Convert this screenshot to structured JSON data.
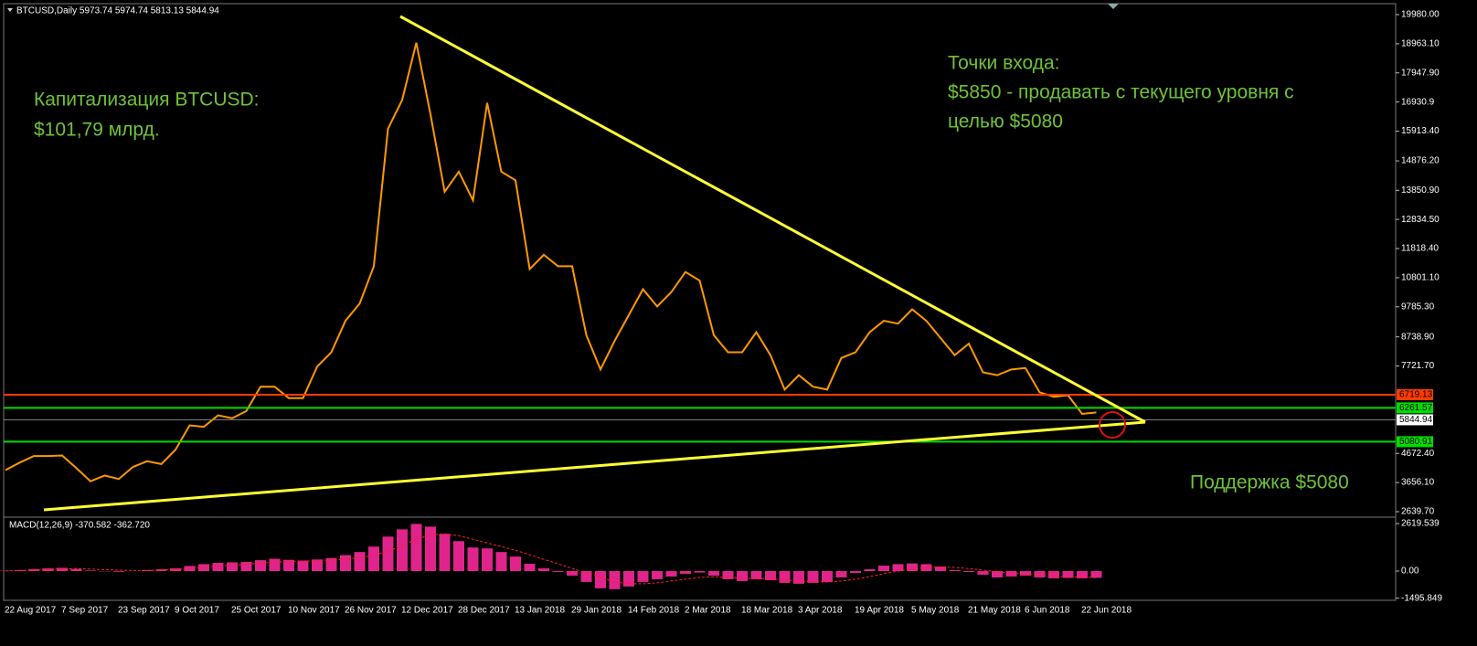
{
  "chart_data": [
    {
      "type": "line",
      "title": "BTCUSD,Daily  5973.74 5974.74 5813.13 5844.94",
      "color": "#ff9900",
      "categories": [
        "22 Aug 2017",
        null,
        null,
        null,
        "7 Sep 2017",
        null,
        null,
        null,
        "23 Sep 2017",
        null,
        null,
        null,
        "9 Oct 2017",
        null,
        null,
        null,
        "25 Oct 2017",
        null,
        null,
        null,
        "10 Nov 2017",
        null,
        null,
        null,
        "26 Nov 2017",
        null,
        null,
        null,
        "12 Dec 2017",
        null,
        null,
        null,
        "28 Dec 2017",
        null,
        null,
        null,
        "13 Jan 2018",
        null,
        null,
        null,
        "29 Jan 2018",
        null,
        null,
        null,
        "14 Feb 2018",
        null,
        null,
        null,
        "2 Mar 2018",
        null,
        null,
        null,
        "18 Mar 2018",
        null,
        null,
        null,
        "3 Apr 2018",
        null,
        null,
        null,
        "19 Apr 2018",
        null,
        null,
        null,
        "5 May 2018",
        null,
        null,
        null,
        "21 May 2018",
        null,
        null,
        null,
        "6 Jun 2018",
        null,
        null,
        null,
        "22 Jun 2018",
        null
      ],
      "values": [
        4090,
        4350,
        4580,
        4580,
        4600,
        4160,
        3700,
        3900,
        3780,
        4200,
        4400,
        4300,
        4800,
        5650,
        5600,
        6000,
        5900,
        6150,
        7000,
        7000,
        6600,
        6600,
        7700,
        8200,
        9300,
        9900,
        11200,
        16000,
        17000,
        19000,
        16500,
        13800,
        14500,
        13500,
        16900,
        14500,
        14200,
        11100,
        11600,
        11200,
        11200,
        8800,
        7600,
        8600,
        9500,
        10400,
        9800,
        10300,
        11000,
        10700,
        8800,
        8200,
        8200,
        8900,
        8100,
        6900,
        7400,
        7000,
        6900,
        8000,
        8200,
        8900,
        9300,
        9200,
        9700,
        9300,
        8700,
        8100,
        8500,
        7500,
        7400,
        7600,
        7650,
        6800,
        6650,
        6700,
        6050,
        6100
      ],
      "ylim": [
        2448,
        20362
      ],
      "yticks": [
        {
          "value": 19980,
          "label": "19980.00"
        },
        {
          "value": 18963.1,
          "label": "18963.10"
        },
        {
          "value": 17947.9,
          "label": "17947.90"
        },
        16930.9,
        {
          "value": 15913.4,
          "label": "15913.40"
        },
        {
          "value": 14876.2,
          "label": "14876.20"
        },
        {
          "value": 13850.9,
          "label": "13850.90"
        },
        {
          "value": 12834.5,
          "label": "12834.50"
        },
        {
          "value": 11818.4,
          "label": "11818.40"
        },
        {
          "value": 10801.1,
          "label": "10801.10"
        },
        {
          "value": 9785.3,
          "label": "9785.30"
        },
        {
          "value": 8738.9,
          "label": "8738.90"
        },
        {
          "value": 7721.7,
          "label": "7721.70"
        },
        {
          "value": 4672.4,
          "label": "4672.40"
        },
        {
          "value": 3656.1,
          "label": "3656.10"
        },
        {
          "value": 2639.7,
          "label": "2639.70"
        }
      ],
      "levels": [
        {
          "value": 6719.13,
          "color": "#ff3c00"
        },
        {
          "value": 6261.57,
          "color": "#00dd00"
        },
        {
          "value": 5844.94,
          "color": "#ffffff"
        },
        {
          "value": 5080.91,
          "color": "#00dd00"
        }
      ],
      "annotations": [
        "Капитализация BTCUSD:",
        "$101,79 млрд.",
        "Точки входа:",
        "$5850 - продавать с текущего уровня с",
        "целью $5080",
        "Поддержка $5080"
      ]
    },
    {
      "type": "macd",
      "title": "MACD(12,26,9) -370.582 -362.720",
      "series": [
        {
          "color": "#e0248c",
          "values": [
            20,
            60,
            110,
            150,
            180,
            120,
            30,
            -20,
            -40,
            0,
            60,
            100,
            150,
            280,
            380,
            450,
            480,
            500,
            600,
            680,
            620,
            580,
            640,
            720,
            880,
            1050,
            1350,
            1900,
            2300,
            2600,
            2450,
            2050,
            1650,
            1300,
            1250,
            1050,
            800,
            400,
            150,
            -50,
            -250,
            -600,
            -950,
            -1000,
            -850,
            -600,
            -450,
            -300,
            -150,
            -80,
            -250,
            -450,
            -550,
            -450,
            -500,
            -650,
            -700,
            -650,
            -600,
            -350,
            -100,
            100,
            300,
            380,
            420,
            380,
            250,
            50,
            -50,
            -200,
            -350,
            -300,
            -250,
            -350,
            -400,
            -380,
            -400,
            -370
          ]
        },
        {
          "color": "#ff2020",
          "values": [
            10,
            30,
            60,
            90,
            120,
            130,
            110,
            80,
            50,
            30,
            40,
            60,
            90,
            140,
            200,
            270,
            330,
            380,
            430,
            490,
            530,
            550,
            570,
            600,
            660,
            740,
            880,
            1100,
            1400,
            1750,
            2000,
            2050,
            1950,
            1750,
            1550,
            1350,
            1150,
            900,
            650,
            400,
            150,
            -100,
            -350,
            -600,
            -700,
            -700,
            -650,
            -550,
            -450,
            -350,
            -320,
            -350,
            -400,
            -420,
            -430,
            -480,
            -550,
            -600,
            -600,
            -550,
            -450,
            -300,
            -150,
            0,
            120,
            200,
            230,
            200,
            140,
            60,
            -50,
            -120,
            -170,
            -220,
            -270,
            -310,
            -340,
            -363
          ]
        }
      ],
      "ylim": [
        -1612,
        2972
      ],
      "yticks": [
        2619.539,
        {
          "value": 0,
          "label": "0.00"
        },
        -1495.849
      ]
    }
  ]
}
